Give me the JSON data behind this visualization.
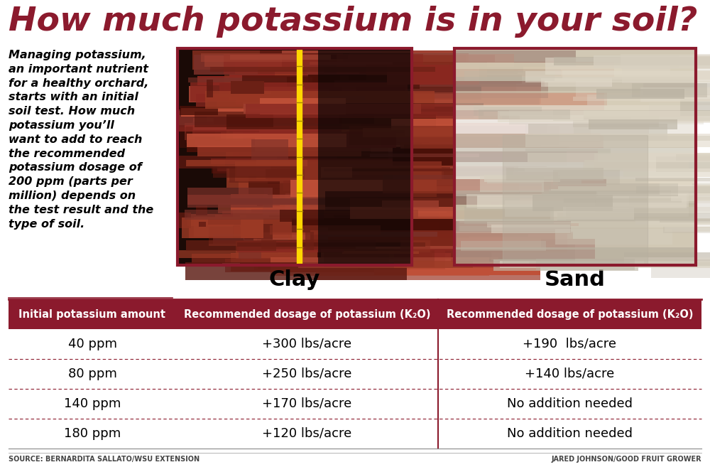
{
  "title": "How much potassium is in your soil?",
  "title_color": "#8B1A2D",
  "background_color": "#FFFFFF",
  "description_text": "Managing potassium,\nan important nutrient\nfor a healthy orchard,\nstarts with an initial\nsoil test. How much\npotassium you’ll\nwant to add to reach\nthe recommended\npotassium dosage of\n200 ppm (parts per\nmillion) depends on\nthe test result and the\ntype of soil.",
  "clay_label": "Clay",
  "sand_label": "Sand",
  "header_bg": "#8B1A2D",
  "header_text_color": "#FFFFFF",
  "col_header_1": "Initial potassium amount",
  "col_header_2": "Recommended dosage of potassium (K₂O)",
  "col_header_3": "Recommended dosage of potassium (K₂O)",
  "rows": [
    [
      "40 ppm",
      "+300 lbs/acre",
      "+190  lbs/acre"
    ],
    [
      "80 ppm",
      "+250 lbs/acre",
      "+140 lbs/acre"
    ],
    [
      "140 ppm",
      "+170 lbs/acre",
      "No addition needed"
    ],
    [
      "180 ppm",
      "+120 lbs/acre",
      "No addition needed"
    ]
  ],
  "row_separator_color": "#8B1A2D",
  "col_separator_color": "#8B1A2D",
  "table_text_color": "#000000",
  "source_left": "SOURCE: BERNARDITA SALLATO/WSU EXTENSION",
  "source_right": "JARED JOHNSON/GOOD FRUIT GROWER",
  "border_color": "#8B1A2D",
  "image_border_color": "#8B1A2D",
  "clay_base_color": "#7A3020",
  "sand_base_color": "#C8B89A",
  "title_fontsize": 34,
  "desc_fontsize": 11.5,
  "label_fontsize": 22,
  "header_fontsize": 10.5,
  "row_fontsize": 13,
  "source_fontsize": 7
}
